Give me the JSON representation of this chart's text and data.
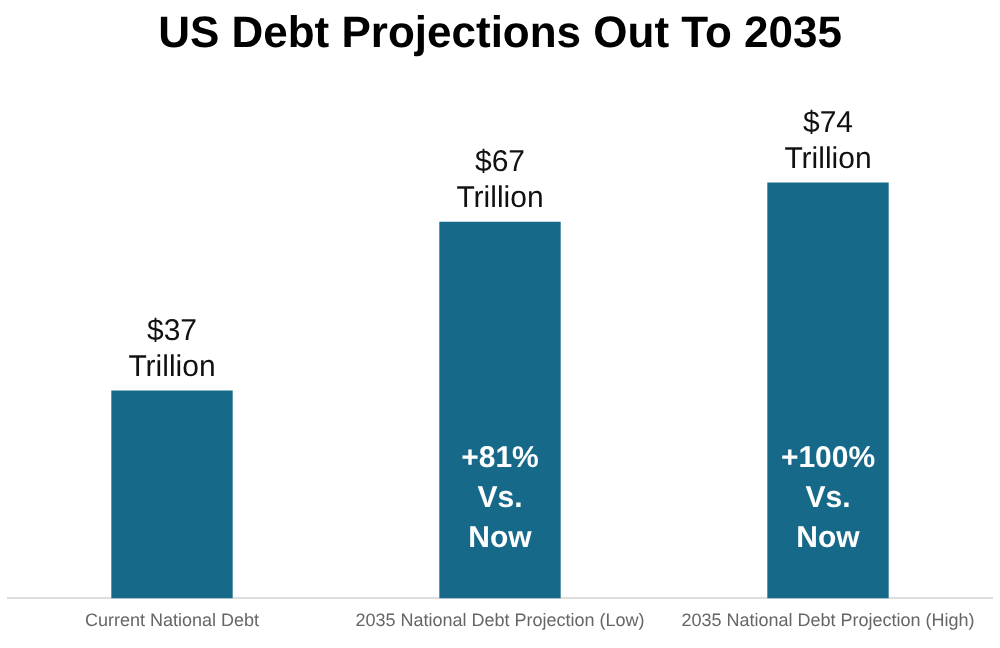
{
  "chart_data": {
    "type": "bar",
    "title": "US Debt Projections Out To 2035",
    "categories": [
      "Current National Debt",
      "2035 National Debt Projection (Low)",
      "2035 National Debt Projection (High)"
    ],
    "values": [
      37,
      67,
      74
    ],
    "value_labels": [
      "$37 Trillion",
      "$67 Trillion",
      "$74 Trillion"
    ],
    "color": "#17698a",
    "annotations": [
      "+81% Vs. Now",
      "+100% Vs. Now"
    ],
    "grid": false,
    "legend": false,
    "tick_labels": "x"
  }
}
